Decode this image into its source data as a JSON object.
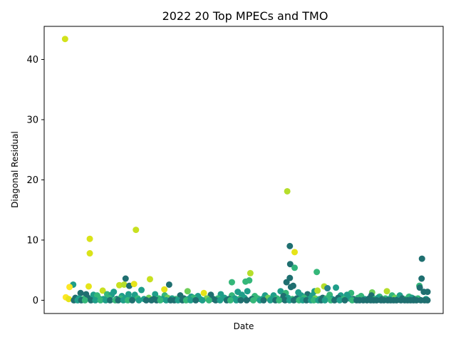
{
  "chart_data": {
    "type": "scatter",
    "title": "2022 20 Top MPECs and TMO",
    "xlabel": "Date",
    "ylabel": "Diagonal Residual",
    "ylim": [
      -2.2,
      45.5
    ],
    "yticks": [
      0,
      10,
      20,
      30,
      40
    ],
    "xlim": [
      0,
      1000
    ],
    "grid": false,
    "x_ticks_visible": false,
    "colormap": [
      "#fde725",
      "#b5de2b",
      "#6ece58",
      "#35b779",
      "#1f9e89",
      "#26828e",
      "#31688e",
      "#3e4989",
      "#482878"
    ],
    "points": [
      {
        "x": 18,
        "y": 43.4,
        "c": "#d2e21b"
      },
      {
        "x": 620,
        "y": 18.1,
        "c": "#b5de2b"
      },
      {
        "x": 210,
        "y": 11.7,
        "c": "#c8e020"
      },
      {
        "x": 85,
        "y": 10.2,
        "c": "#dae319"
      },
      {
        "x": 85,
        "y": 7.8,
        "c": "#dae319"
      },
      {
        "x": 627,
        "y": 9.0,
        "c": "#1f6f70"
      },
      {
        "x": 628,
        "y": 6.0,
        "c": "#1f6f70"
      },
      {
        "x": 640,
        "y": 8.0,
        "c": "#e6e419"
      },
      {
        "x": 640,
        "y": 5.4,
        "c": "#2fb47c"
      },
      {
        "x": 700,
        "y": 4.7,
        "c": "#35b779"
      },
      {
        "x": 985,
        "y": 6.9,
        "c": "#1f6f70"
      },
      {
        "x": 520,
        "y": 4.5,
        "c": "#b5de2b"
      },
      {
        "x": 182,
        "y": 3.6,
        "c": "#1f6f70"
      },
      {
        "x": 248,
        "y": 3.5,
        "c": "#c8e020"
      },
      {
        "x": 470,
        "y": 3.0,
        "c": "#35b779"
      },
      {
        "x": 517,
        "y": 3.3,
        "c": "#35b779"
      },
      {
        "x": 507,
        "y": 3.1,
        "c": "#35b779"
      },
      {
        "x": 618,
        "y": 3.0,
        "c": "#1f6f70"
      },
      {
        "x": 627,
        "y": 3.7,
        "c": "#1f6f70"
      },
      {
        "x": 984,
        "y": 3.6,
        "c": "#1f6f70"
      },
      {
        "x": 40,
        "y": 2.6,
        "c": "#1f9e89"
      },
      {
        "x": 30,
        "y": 2.2,
        "c": "#fde725"
      },
      {
        "x": 82,
        "y": 2.3,
        "c": "#e6e419"
      },
      {
        "x": 165,
        "y": 2.5,
        "c": "#c8e020"
      },
      {
        "x": 178,
        "y": 2.6,
        "c": "#b5de2b"
      },
      {
        "x": 192,
        "y": 2.4,
        "c": "#1f6f70"
      },
      {
        "x": 205,
        "y": 2.7,
        "c": "#e6e419"
      },
      {
        "x": 300,
        "y": 2.6,
        "c": "#1f6f70"
      },
      {
        "x": 630,
        "y": 2.2,
        "c": "#1f6f70"
      },
      {
        "x": 636,
        "y": 2.4,
        "c": "#1f6f70"
      },
      {
        "x": 720,
        "y": 2.3,
        "c": "#b5de2b"
      },
      {
        "x": 729,
        "y": 2.0,
        "c": "#26828e"
      },
      {
        "x": 752,
        "y": 2.1,
        "c": "#1f9e89"
      },
      {
        "x": 978,
        "y": 2.4,
        "c": "#35b779"
      },
      {
        "x": 979,
        "y": 2.1,
        "c": "#1f6f70"
      },
      {
        "x": 120,
        "y": 1.6,
        "c": "#c8e020"
      },
      {
        "x": 150,
        "y": 1.4,
        "c": "#1f9e89"
      },
      {
        "x": 225,
        "y": 1.7,
        "c": "#1f9e89"
      },
      {
        "x": 287,
        "y": 1.8,
        "c": "#e6e419"
      },
      {
        "x": 350,
        "y": 1.5,
        "c": "#6ece58"
      },
      {
        "x": 394,
        "y": 1.2,
        "c": "#e6e419"
      },
      {
        "x": 486,
        "y": 1.4,
        "c": "#1f9e89"
      },
      {
        "x": 512,
        "y": 1.5,
        "c": "#1f9e89"
      },
      {
        "x": 602,
        "y": 1.5,
        "c": "#1f9e89"
      },
      {
        "x": 616,
        "y": 1.2,
        "c": "#35b779"
      },
      {
        "x": 650,
        "y": 1.3,
        "c": "#1f9e89"
      },
      {
        "x": 694,
        "y": 1.5,
        "c": "#1f9e89"
      },
      {
        "x": 702,
        "y": 1.6,
        "c": "#b5de2b"
      },
      {
        "x": 793,
        "y": 1.2,
        "c": "#35b779"
      },
      {
        "x": 850,
        "y": 1.3,
        "c": "#6ece58"
      },
      {
        "x": 890,
        "y": 1.5,
        "c": "#b5de2b"
      },
      {
        "x": 990,
        "y": 1.4,
        "c": "#1f6f70"
      },
      {
        "x": 1000,
        "y": 1.4,
        "c": "#1f6f70"
      },
      {
        "x": 60,
        "y": 1.2,
        "c": "#1f6f70"
      },
      {
        "x": 75,
        "y": 1.0,
        "c": "#1f6f70"
      },
      {
        "x": 95,
        "y": 0.9,
        "c": "#1f9e89"
      },
      {
        "x": 105,
        "y": 0.8,
        "c": "#35b779"
      },
      {
        "x": 132,
        "y": 1.0,
        "c": "#35b779"
      },
      {
        "x": 144,
        "y": 0.9,
        "c": "#1f9e89"
      },
      {
        "x": 172,
        "y": 0.7,
        "c": "#1f9e89"
      },
      {
        "x": 190,
        "y": 1.0,
        "c": "#1f9e89"
      },
      {
        "x": 207,
        "y": 0.9,
        "c": "#1f9e89"
      },
      {
        "x": 262,
        "y": 1.0,
        "c": "#1f9e89"
      },
      {
        "x": 288,
        "y": 0.8,
        "c": "#35b779"
      },
      {
        "x": 330,
        "y": 0.8,
        "c": "#1f6f70"
      },
      {
        "x": 360,
        "y": 0.6,
        "c": "#1f9e89"
      },
      {
        "x": 378,
        "y": 0.7,
        "c": "#1f9e89"
      },
      {
        "x": 413,
        "y": 0.9,
        "c": "#1f6f70"
      },
      {
        "x": 440,
        "y": 1.0,
        "c": "#1f9e89"
      },
      {
        "x": 470,
        "y": 0.8,
        "c": "#35b779"
      },
      {
        "x": 497,
        "y": 0.9,
        "c": "#1f9e89"
      },
      {
        "x": 532,
        "y": 0.7,
        "c": "#35b779"
      },
      {
        "x": 560,
        "y": 0.8,
        "c": "#1f9e89"
      },
      {
        "x": 583,
        "y": 0.8,
        "c": "#1f9e89"
      },
      {
        "x": 610,
        "y": 0.7,
        "c": "#1f6f70"
      },
      {
        "x": 658,
        "y": 0.8,
        "c": "#1f9e89"
      },
      {
        "x": 675,
        "y": 1.0,
        "c": "#1f6f70"
      },
      {
        "x": 688,
        "y": 0.8,
        "c": "#1f9e89"
      },
      {
        "x": 735,
        "y": 0.9,
        "c": "#35b779"
      },
      {
        "x": 765,
        "y": 0.8,
        "c": "#1f9e89"
      },
      {
        "x": 782,
        "y": 0.9,
        "c": "#1f9e89"
      },
      {
        "x": 820,
        "y": 0.7,
        "c": "#35b779"
      },
      {
        "x": 848,
        "y": 0.8,
        "c": "#1f6f70"
      },
      {
        "x": 870,
        "y": 0.6,
        "c": "#35b779"
      },
      {
        "x": 904,
        "y": 0.8,
        "c": "#35b779"
      },
      {
        "x": 925,
        "y": 0.8,
        "c": "#1f9e89"
      },
      {
        "x": 950,
        "y": 0.6,
        "c": "#35b779"
      },
      {
        "x": 20,
        "y": 0.5,
        "c": "#fde725"
      },
      {
        "x": 28,
        "y": 0.2,
        "c": "#e6e419"
      },
      {
        "x": 46,
        "y": 0.4,
        "c": "#1f6f70"
      },
      {
        "x": 56,
        "y": 0.3,
        "c": "#1f9e89"
      },
      {
        "x": 68,
        "y": 0.2,
        "c": "#35b779"
      },
      {
        "x": 80,
        "y": 0.4,
        "c": "#1f6f70"
      },
      {
        "x": 92,
        "y": 0.2,
        "c": "#1f9e89"
      },
      {
        "x": 110,
        "y": 0.3,
        "c": "#35b779"
      },
      {
        "x": 122,
        "y": 0.2,
        "c": "#1f9e89"
      },
      {
        "x": 137,
        "y": 0.4,
        "c": "#35b779"
      },
      {
        "x": 158,
        "y": 0.2,
        "c": "#1f6f70"
      },
      {
        "x": 168,
        "y": 0.3,
        "c": "#35b779"
      },
      {
        "x": 185,
        "y": 0.4,
        "c": "#1f9e89"
      },
      {
        "x": 198,
        "y": 0.2,
        "c": "#1f9e89"
      },
      {
        "x": 215,
        "y": 0.3,
        "c": "#35b779"
      },
      {
        "x": 232,
        "y": 0.2,
        "c": "#1f9e89"
      },
      {
        "x": 245,
        "y": 0.4,
        "c": "#6ece58"
      },
      {
        "x": 258,
        "y": 0.2,
        "c": "#1f6f70"
      },
      {
        "x": 272,
        "y": 0.3,
        "c": "#35b779"
      },
      {
        "x": 282,
        "y": 0.2,
        "c": "#1f9e89"
      },
      {
        "x": 296,
        "y": 0.4,
        "c": "#6ece58"
      },
      {
        "x": 308,
        "y": 0.3,
        "c": "#1f9e89"
      },
      {
        "x": 318,
        "y": 0.2,
        "c": "#35b779"
      },
      {
        "x": 340,
        "y": 0.3,
        "c": "#1f6f70"
      },
      {
        "x": 352,
        "y": 0.2,
        "c": "#1f9e89"
      },
      {
        "x": 366,
        "y": 0.4,
        "c": "#35b779"
      },
      {
        "x": 384,
        "y": 0.2,
        "c": "#1f9e89"
      },
      {
        "x": 402,
        "y": 0.3,
        "c": "#6ece58"
      },
      {
        "x": 420,
        "y": 0.2,
        "c": "#1f6f70"
      },
      {
        "x": 432,
        "y": 0.3,
        "c": "#35b779"
      },
      {
        "x": 450,
        "y": 0.4,
        "c": "#1f9e89"
      },
      {
        "x": 462,
        "y": 0.2,
        "c": "#1f6f70"
      },
      {
        "x": 478,
        "y": 0.3,
        "c": "#1f9e89"
      },
      {
        "x": 490,
        "y": 0.2,
        "c": "#35b779"
      },
      {
        "x": 504,
        "y": 0.4,
        "c": "#1f9e89"
      },
      {
        "x": 524,
        "y": 0.2,
        "c": "#1f6f70"
      },
      {
        "x": 540,
        "y": 0.3,
        "c": "#35b779"
      },
      {
        "x": 552,
        "y": 0.2,
        "c": "#1f9e89"
      },
      {
        "x": 568,
        "y": 0.4,
        "c": "#6ece58"
      },
      {
        "x": 578,
        "y": 0.2,
        "c": "#1f9e89"
      },
      {
        "x": 592,
        "y": 0.3,
        "c": "#35b779"
      },
      {
        "x": 606,
        "y": 0.2,
        "c": "#1f6f70"
      },
      {
        "x": 622,
        "y": 0.4,
        "c": "#1f9e89"
      },
      {
        "x": 634,
        "y": 0.2,
        "c": "#35b779"
      },
      {
        "x": 646,
        "y": 0.3,
        "c": "#1f6f70"
      },
      {
        "x": 656,
        "y": 0.2,
        "c": "#1f9e89"
      },
      {
        "x": 666,
        "y": 0.4,
        "c": "#35b779"
      },
      {
        "x": 680,
        "y": 0.2,
        "c": "#1f9e89"
      },
      {
        "x": 696,
        "y": 0.3,
        "c": "#6ece58"
      },
      {
        "x": 708,
        "y": 0.2,
        "c": "#1f9e89"
      },
      {
        "x": 716,
        "y": 0.4,
        "c": "#1f6f70"
      },
      {
        "x": 726,
        "y": 0.3,
        "c": "#35b779"
      },
      {
        "x": 742,
        "y": 0.2,
        "c": "#1f9e89"
      },
      {
        "x": 758,
        "y": 0.4,
        "c": "#1f6f70"
      },
      {
        "x": 772,
        "y": 0.2,
        "c": "#35b779"
      },
      {
        "x": 788,
        "y": 0.3,
        "c": "#1f9e89"
      },
      {
        "x": 800,
        "y": 0.2,
        "c": "#1f6f70"
      },
      {
        "x": 812,
        "y": 0.4,
        "c": "#35b779"
      },
      {
        "x": 830,
        "y": 0.2,
        "c": "#1f9e89"
      },
      {
        "x": 842,
        "y": 0.3,
        "c": "#1f6f70"
      },
      {
        "x": 858,
        "y": 0.2,
        "c": "#35b779"
      },
      {
        "x": 866,
        "y": 0.4,
        "c": "#1f9e89"
      },
      {
        "x": 878,
        "y": 0.2,
        "c": "#1f6f70"
      },
      {
        "x": 886,
        "y": 0.3,
        "c": "#35b779"
      },
      {
        "x": 896,
        "y": 0.2,
        "c": "#1f9e89"
      },
      {
        "x": 912,
        "y": 0.4,
        "c": "#6ece58"
      },
      {
        "x": 920,
        "y": 0.2,
        "c": "#1f9e89"
      },
      {
        "x": 932,
        "y": 0.3,
        "c": "#1f6f70"
      },
      {
        "x": 942,
        "y": 0.2,
        "c": "#35b779"
      },
      {
        "x": 958,
        "y": 0.4,
        "c": "#1f9e89"
      },
      {
        "x": 966,
        "y": 0.2,
        "c": "#1f6f70"
      },
      {
        "x": 974,
        "y": 0.3,
        "c": "#35b779"
      },
      {
        "x": 996,
        "y": 0.2,
        "c": "#1f9e89"
      },
      {
        "x": 42,
        "y": 0.0,
        "c": "#1f6f70"
      },
      {
        "x": 52,
        "y": 0.0,
        "c": "#1f9e89"
      },
      {
        "x": 62,
        "y": 0.0,
        "c": "#1f6f70"
      },
      {
        "x": 72,
        "y": 0.0,
        "c": "#35b779"
      },
      {
        "x": 88,
        "y": 0.0,
        "c": "#1f6f70"
      },
      {
        "x": 100,
        "y": 0.0,
        "c": "#1f9e89"
      },
      {
        "x": 114,
        "y": 0.0,
        "c": "#35b779"
      },
      {
        "x": 128,
        "y": 0.0,
        "c": "#1f9e89"
      },
      {
        "x": 140,
        "y": 0.0,
        "c": "#1f6f70"
      },
      {
        "x": 154,
        "y": 0.0,
        "c": "#35b779"
      },
      {
        "x": 162,
        "y": 0.0,
        "c": "#1f6f70"
      },
      {
        "x": 176,
        "y": 0.0,
        "c": "#1f9e89"
      },
      {
        "x": 188,
        "y": 0.0,
        "c": "#35b779"
      },
      {
        "x": 200,
        "y": 0.0,
        "c": "#1f6f70"
      },
      {
        "x": 218,
        "y": 0.0,
        "c": "#1f9e89"
      },
      {
        "x": 238,
        "y": 0.0,
        "c": "#1f6f70"
      },
      {
        "x": 252,
        "y": 0.0,
        "c": "#1f6f70"
      },
      {
        "x": 266,
        "y": 0.0,
        "c": "#1f6f70"
      },
      {
        "x": 276,
        "y": 0.0,
        "c": "#35b779"
      },
      {
        "x": 292,
        "y": 0.0,
        "c": "#1f9e89"
      },
      {
        "x": 304,
        "y": 0.0,
        "c": "#1f6f70"
      },
      {
        "x": 314,
        "y": 0.0,
        "c": "#1f6f70"
      },
      {
        "x": 324,
        "y": 0.0,
        "c": "#1f9e89"
      },
      {
        "x": 336,
        "y": 0.0,
        "c": "#1f6f70"
      },
      {
        "x": 346,
        "y": 0.0,
        "c": "#35b779"
      },
      {
        "x": 358,
        "y": 0.0,
        "c": "#1f9e89"
      },
      {
        "x": 372,
        "y": 0.0,
        "c": "#1f6f70"
      },
      {
        "x": 390,
        "y": 0.0,
        "c": "#1f9e89"
      },
      {
        "x": 408,
        "y": 0.0,
        "c": "#35b779"
      },
      {
        "x": 426,
        "y": 0.0,
        "c": "#1f6f70"
      },
      {
        "x": 438,
        "y": 0.0,
        "c": "#1f9e89"
      },
      {
        "x": 456,
        "y": 0.0,
        "c": "#1f6f70"
      },
      {
        "x": 466,
        "y": 0.0,
        "c": "#35b779"
      },
      {
        "x": 482,
        "y": 0.0,
        "c": "#1f9e89"
      },
      {
        "x": 494,
        "y": 0.0,
        "c": "#1f6f70"
      },
      {
        "x": 510,
        "y": 0.0,
        "c": "#1f6f70"
      },
      {
        "x": 528,
        "y": 0.0,
        "c": "#35b779"
      },
      {
        "x": 546,
        "y": 0.0,
        "c": "#1f9e89"
      },
      {
        "x": 556,
        "y": 0.0,
        "c": "#1f6f70"
      },
      {
        "x": 574,
        "y": 0.0,
        "c": "#1f9e89"
      },
      {
        "x": 588,
        "y": 0.0,
        "c": "#1f6f70"
      },
      {
        "x": 598,
        "y": 0.0,
        "c": "#35b779"
      },
      {
        "x": 614,
        "y": 0.0,
        "c": "#1f6f70"
      },
      {
        "x": 626,
        "y": 0.0,
        "c": "#1f9e89"
      },
      {
        "x": 638,
        "y": 0.0,
        "c": "#1f6f70"
      },
      {
        "x": 652,
        "y": 0.0,
        "c": "#35b779"
      },
      {
        "x": 662,
        "y": 0.0,
        "c": "#1f9e89"
      },
      {
        "x": 672,
        "y": 0.0,
        "c": "#1f6f70"
      },
      {
        "x": 684,
        "y": 0.0,
        "c": "#1f9e89"
      },
      {
        "x": 692,
        "y": 0.0,
        "c": "#35b779"
      },
      {
        "x": 704,
        "y": 0.0,
        "c": "#1f9e89"
      },
      {
        "x": 712,
        "y": 0.0,
        "c": "#1f6f70"
      },
      {
        "x": 722,
        "y": 0.0,
        "c": "#1f9e89"
      },
      {
        "x": 738,
        "y": 0.0,
        "c": "#35b779"
      },
      {
        "x": 748,
        "y": 0.0,
        "c": "#1f6f70"
      },
      {
        "x": 762,
        "y": 0.0,
        "c": "#1f9e89"
      },
      {
        "x": 776,
        "y": 0.0,
        "c": "#1f6f70"
      },
      {
        "x": 796,
        "y": 0.0,
        "c": "#35b779"
      },
      {
        "x": 808,
        "y": 0.0,
        "c": "#1f6f70"
      },
      {
        "x": 816,
        "y": 0.0,
        "c": "#1f6f70"
      },
      {
        "x": 826,
        "y": 0.0,
        "c": "#1f6f70"
      },
      {
        "x": 836,
        "y": 0.0,
        "c": "#1f6f70"
      },
      {
        "x": 846,
        "y": 0.0,
        "c": "#1f6f70"
      },
      {
        "x": 854,
        "y": 0.0,
        "c": "#1f6f70"
      },
      {
        "x": 862,
        "y": 0.0,
        "c": "#1f6f70"
      },
      {
        "x": 874,
        "y": 0.0,
        "c": "#1f6f70"
      },
      {
        "x": 882,
        "y": 0.0,
        "c": "#1f6f70"
      },
      {
        "x": 892,
        "y": 0.0,
        "c": "#1f6f70"
      },
      {
        "x": 900,
        "y": 0.0,
        "c": "#1f6f70"
      },
      {
        "x": 908,
        "y": 0.0,
        "c": "#1f6f70"
      },
      {
        "x": 916,
        "y": 0.0,
        "c": "#1f6f70"
      },
      {
        "x": 928,
        "y": 0.0,
        "c": "#1f6f70"
      },
      {
        "x": 938,
        "y": 0.0,
        "c": "#1f6f70"
      },
      {
        "x": 946,
        "y": 0.0,
        "c": "#1f6f70"
      },
      {
        "x": 954,
        "y": 0.0,
        "c": "#1f6f70"
      },
      {
        "x": 962,
        "y": 0.0,
        "c": "#1f6f70"
      },
      {
        "x": 970,
        "y": 0.0,
        "c": "#1f6f70"
      },
      {
        "x": 982,
        "y": 0.0,
        "c": "#1f6f70"
      },
      {
        "x": 992,
        "y": 0.0,
        "c": "#1f6f70"
      },
      {
        "x": 1000,
        "y": 0.0,
        "c": "#1f6f70"
      }
    ]
  }
}
